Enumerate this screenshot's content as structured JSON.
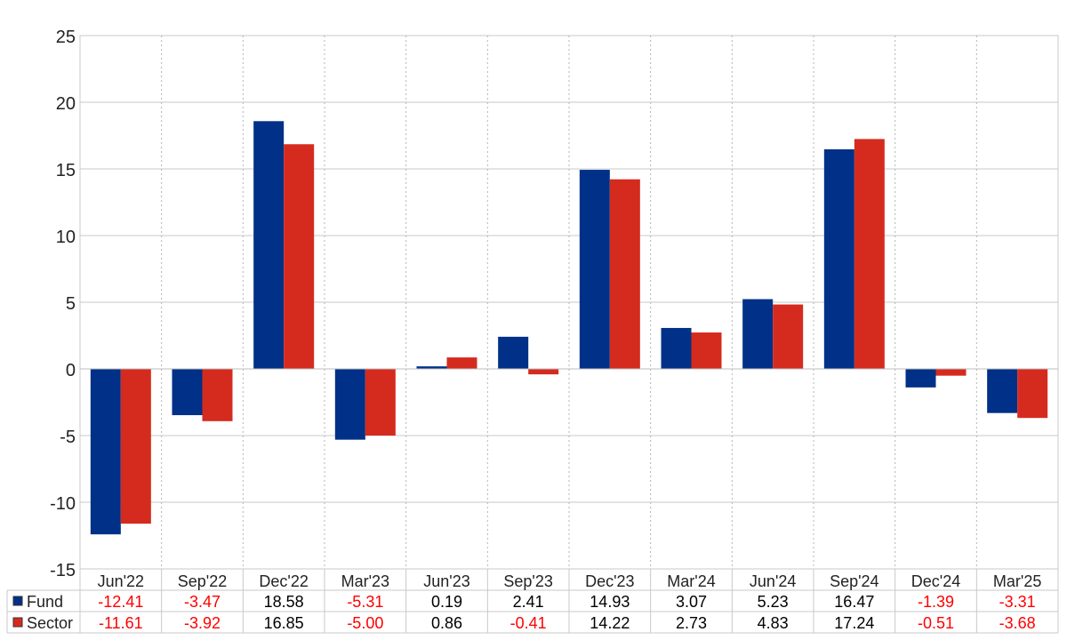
{
  "chart_data": {
    "type": "bar",
    "categories": [
      "Jun'22",
      "Sep'22",
      "Dec'22",
      "Mar'23",
      "Jun'23",
      "Sep'23",
      "Dec'23",
      "Mar'24",
      "Jun'24",
      "Sep'24",
      "Dec'24",
      "Mar'25"
    ],
    "series": [
      {
        "name": "Fund",
        "color": "#003087",
        "values": [
          -12.41,
          -3.47,
          18.58,
          -5.31,
          0.19,
          2.41,
          14.93,
          3.07,
          5.23,
          16.47,
          -1.39,
          -3.31
        ],
        "labels": [
          "-12.41",
          "-3.47",
          "18.58",
          "-5.31",
          "0.19",
          "2.41",
          "14.93",
          "3.07",
          "5.23",
          "16.47",
          "-1.39",
          "-3.31"
        ]
      },
      {
        "name": "Sector",
        "color": "#d52b1e",
        "values": [
          -11.61,
          -3.92,
          16.85,
          -5.0,
          0.86,
          -0.41,
          14.22,
          2.73,
          4.83,
          17.24,
          -0.51,
          -3.68
        ],
        "labels": [
          "-11.61",
          "-3.92",
          "16.85",
          "-5.00",
          "0.86",
          "-0.41",
          "14.22",
          "2.73",
          "4.83",
          "17.24",
          "-0.51",
          "-3.68"
        ]
      }
    ],
    "ylim": [
      -15,
      25
    ],
    "yticks": [
      25,
      20,
      15,
      10,
      5,
      0,
      -5,
      -10,
      -15
    ],
    "yticklabels": [
      "25",
      "20",
      "15",
      "10",
      "5",
      "0",
      "-5",
      "-10",
      "-15"
    ],
    "grid": true,
    "legend": "data-table-left",
    "negative_value_color": "#ff0000",
    "positive_value_color": "#000000",
    "title": "",
    "xlabel": "",
    "ylabel": ""
  }
}
